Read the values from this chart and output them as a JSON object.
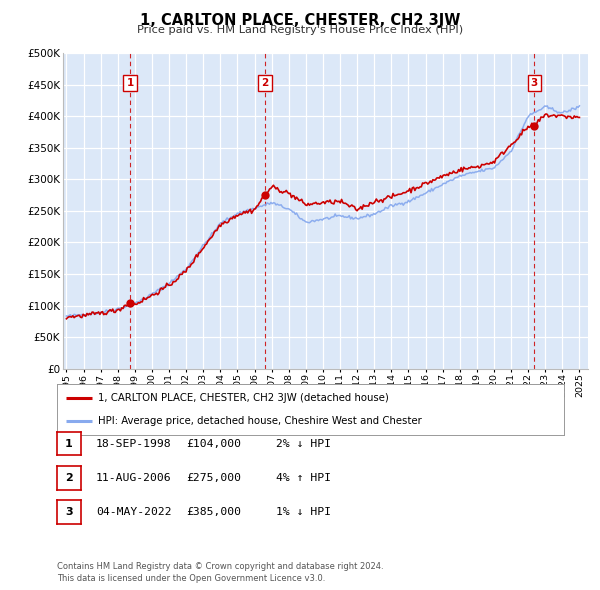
{
  "title": "1, CARLTON PLACE, CHESTER, CH2 3JW",
  "subtitle": "Price paid vs. HM Land Registry's House Price Index (HPI)",
  "ylim": [
    0,
    500000
  ],
  "yticks": [
    0,
    50000,
    100000,
    150000,
    200000,
    250000,
    300000,
    350000,
    400000,
    450000,
    500000
  ],
  "ytick_labels": [
    "£0",
    "£50K",
    "£100K",
    "£150K",
    "£200K",
    "£250K",
    "£300K",
    "£350K",
    "£400K",
    "£450K",
    "£500K"
  ],
  "xlim_start": 1994.8,
  "xlim_end": 2025.5,
  "xticks": [
    1995,
    1996,
    1997,
    1998,
    1999,
    2000,
    2001,
    2002,
    2003,
    2004,
    2005,
    2006,
    2007,
    2008,
    2009,
    2010,
    2011,
    2012,
    2013,
    2014,
    2015,
    2016,
    2017,
    2018,
    2019,
    2020,
    2021,
    2022,
    2023,
    2024,
    2025
  ],
  "plot_bg_color": "#dce8f8",
  "grid_color": "#ffffff",
  "red_line_color": "#cc0000",
  "blue_line_color": "#88aaee",
  "vline_color": "#cc0000",
  "hpi_key_years": [
    1995,
    1996,
    1997,
    1998,
    1999,
    2000,
    2001,
    2002,
    2003,
    2004,
    2005,
    2006,
    2007,
    2008,
    2009,
    2010,
    2011,
    2012,
    2013,
    2014,
    2015,
    2016,
    2017,
    2018,
    2019,
    2020,
    2021,
    2022,
    2023,
    2024,
    2025
  ],
  "hpi_key_values": [
    83000,
    86000,
    89000,
    95000,
    103000,
    118000,
    135000,
    158000,
    195000,
    230000,
    246000,
    254000,
    263000,
    253000,
    232000,
    237000,
    242000,
    238000,
    245000,
    258000,
    265000,
    278000,
    292000,
    305000,
    312000,
    318000,
    345000,
    400000,
    415000,
    405000,
    415000
  ],
  "red_key_years": [
    1995,
    1996,
    1997,
    1998,
    1998.72,
    1999,
    2000,
    2001,
    2002,
    2003,
    2004,
    2005,
    2006,
    2006.61,
    2007,
    2008,
    2009,
    2010,
    2011,
    2012,
    2013,
    2014,
    2015,
    2016,
    2017,
    2018,
    2019,
    2020,
    2021,
    2022,
    2022.35,
    2023,
    2024,
    2025
  ],
  "red_key_values": [
    82000,
    84000,
    88000,
    93000,
    104000,
    102000,
    116000,
    132000,
    155000,
    192000,
    228000,
    244000,
    252000,
    275000,
    288000,
    278000,
    260000,
    263000,
    265000,
    252000,
    265000,
    272000,
    282000,
    293000,
    305000,
    315000,
    320000,
    328000,
    355000,
    383000,
    385000,
    402000,
    400000,
    398000
  ],
  "sale_points": [
    {
      "year": 1998.72,
      "value": 104000,
      "label": "1"
    },
    {
      "year": 2006.61,
      "value": 275000,
      "label": "2"
    },
    {
      "year": 2022.35,
      "value": 385000,
      "label": "3"
    }
  ],
  "legend_entries": [
    {
      "label": "1, CARLTON PLACE, CHESTER, CH2 3JW (detached house)",
      "color": "#cc0000"
    },
    {
      "label": "HPI: Average price, detached house, Cheshire West and Chester",
      "color": "#88aaee"
    }
  ],
  "table_rows": [
    {
      "num": "1",
      "date": "18-SEP-1998",
      "price": "£104,000",
      "hpi": "2% ↓ HPI"
    },
    {
      "num": "2",
      "date": "11-AUG-2006",
      "price": "£275,000",
      "hpi": "4% ↑ HPI"
    },
    {
      "num": "3",
      "date": "04-MAY-2022",
      "price": "£385,000",
      "hpi": "1% ↓ HPI"
    }
  ],
  "footnote_line1": "Contains HM Land Registry data © Crown copyright and database right 2024.",
  "footnote_line2": "This data is licensed under the Open Government Licence v3.0."
}
